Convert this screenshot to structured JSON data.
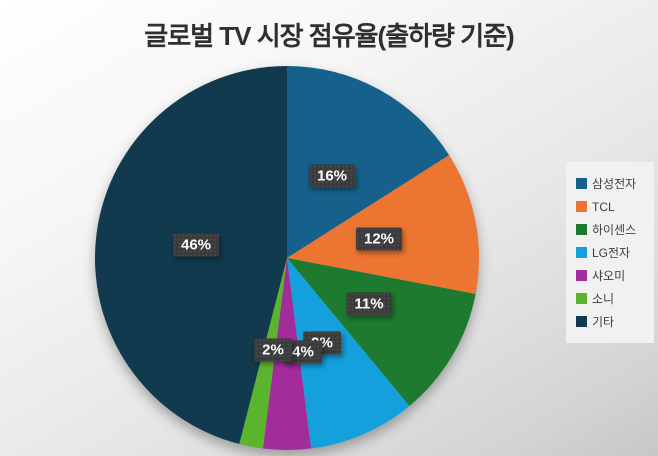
{
  "chart_data": {
    "type": "pie",
    "title": "글로벌 TV 시장 점유율(출하량 기준)",
    "categories": [
      "삼성전자",
      "TCL",
      "하이센스",
      "LG전자",
      "샤오미",
      "소니",
      "기타"
    ],
    "values": [
      16,
      12,
      11,
      9,
      4,
      2,
      46
    ],
    "data_labels": [
      "16%",
      "12%",
      "11%",
      "9%",
      "4%",
      "2%",
      "46%"
    ],
    "colors": [
      "#15618b",
      "#ec7531",
      "#1e7a2e",
      "#14a0dc",
      "#a32c9b",
      "#5bb42e",
      "#113a4f"
    ],
    "legend_position": "right",
    "start_angle_deg": 0,
    "direction": "clockwise",
    "label_box_color": "#3b3b3b",
    "label_text_color": "#ffffff"
  }
}
